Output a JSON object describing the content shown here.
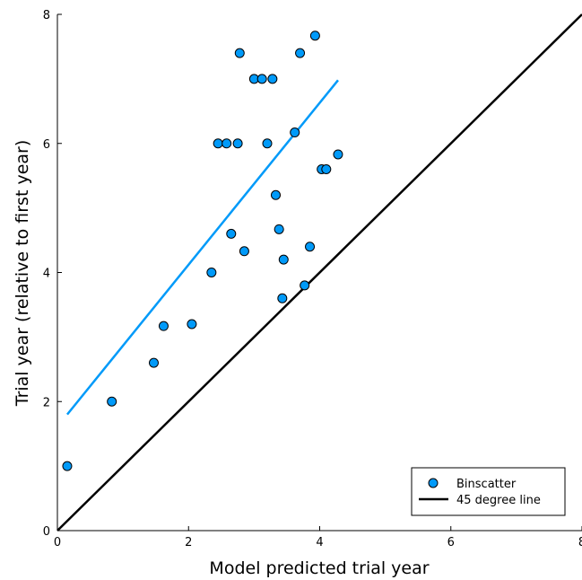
{
  "chart_data": {
    "type": "scatter",
    "xlabel": "Model predicted trial year",
    "ylabel": "Trial year (relative to first year)",
    "xlim": [
      0,
      8
    ],
    "ylim": [
      0,
      8
    ],
    "xticks": [
      "0",
      "2",
      "4",
      "6",
      "8"
    ],
    "yticks": [
      "0",
      "2",
      "4",
      "6",
      "8"
    ],
    "grid": false,
    "legend_position": "bottom-right",
    "series": [
      {
        "name": "Binscatter",
        "kind": "scatter",
        "color": "#009af9",
        "points": [
          [
            0.15,
            1.0
          ],
          [
            0.83,
            2.0
          ],
          [
            1.47,
            2.6
          ],
          [
            1.62,
            3.17
          ],
          [
            2.05,
            3.2
          ],
          [
            2.35,
            4.0
          ],
          [
            2.45,
            6.0
          ],
          [
            2.58,
            6.0
          ],
          [
            2.65,
            4.6
          ],
          [
            2.75,
            6.0
          ],
          [
            2.78,
            7.4
          ],
          [
            2.85,
            4.33
          ],
          [
            3.0,
            7.0
          ],
          [
            3.12,
            7.0
          ],
          [
            3.2,
            6.0
          ],
          [
            3.28,
            7.0
          ],
          [
            3.33,
            5.2
          ],
          [
            3.38,
            4.67
          ],
          [
            3.43,
            3.6
          ],
          [
            3.45,
            4.2
          ],
          [
            3.62,
            6.17
          ],
          [
            3.7,
            7.4
          ],
          [
            3.77,
            3.8
          ],
          [
            3.85,
            4.4
          ],
          [
            3.93,
            7.67
          ],
          [
            4.03,
            5.6
          ],
          [
            4.1,
            5.6
          ],
          [
            4.28,
            5.83
          ]
        ]
      },
      {
        "name": "",
        "kind": "line",
        "color": "#009af9",
        "points": [
          [
            0.15,
            1.8
          ],
          [
            4.28,
            6.98
          ]
        ]
      },
      {
        "name": "45 degree line",
        "kind": "line",
        "color": "#000000",
        "points": [
          [
            0,
            0
          ],
          [
            8,
            8
          ]
        ]
      }
    ]
  }
}
